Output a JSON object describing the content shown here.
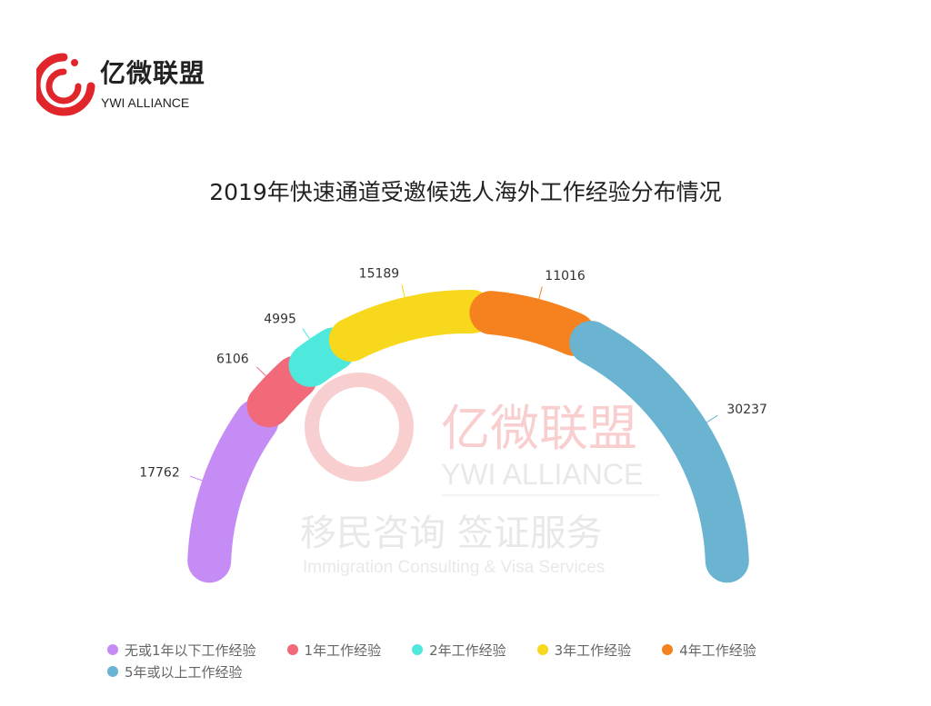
{
  "logo": {
    "cn": "亿微联盟",
    "en": "YWI ALLIANCE",
    "color": "#e0252b"
  },
  "watermark": {
    "cn": "亿微联盟",
    "en": "YWI ALLIANCE",
    "slogan": "移民咨询 签证服务",
    "slogan_en": "Immigration Consulting & Visa Services"
  },
  "chart_data": {
    "type": "pie",
    "variant": "half-donut",
    "title": "2019年快速通道受邀候选人海外工作经验分布情况",
    "categories": [
      "无或1年以下工作经验",
      "1年工作经验",
      "2年工作经验",
      "3年工作经验",
      "4年工作经验",
      "5年或以上工作经验"
    ],
    "values": [
      17762,
      6106,
      4995,
      15189,
      11016,
      30237
    ],
    "colors": [
      "#c68cf5",
      "#f2697a",
      "#4ee8dc",
      "#f8d81c",
      "#f5821f",
      "#6ab4d2"
    ],
    "legend_position": "bottom"
  }
}
